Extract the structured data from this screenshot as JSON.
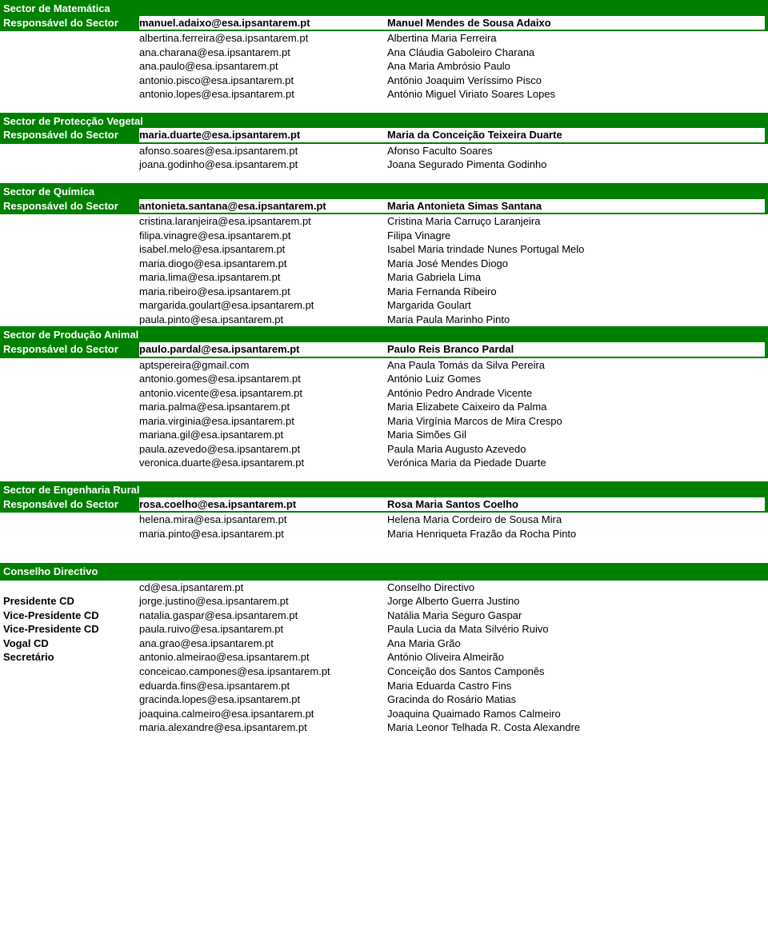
{
  "labels": {
    "responsavel": "Responsável do Sector"
  },
  "sectors": {
    "matematica": {
      "title": "Sector de Matemática",
      "items": [
        {
          "email": "manuel.adaixo@esa.ipsantarem.pt",
          "name": "Manuel Mendes de Sousa Adaixo"
        },
        {
          "email": "albertina.ferreira@esa.ipsantarem.pt",
          "name": "Albertina Maria Ferreira"
        },
        {
          "email": "ana.charana@esa.ipsantarem.pt",
          "name": "Ana Cláudia Gaboleiro Charana"
        },
        {
          "email": "ana.paulo@esa.ipsantarem.pt",
          "name": "Ana Maria Ambrósio Paulo"
        },
        {
          "email": "antonio.pisco@esa.ipsantarem.pt",
          "name": "António Joaquim Veríssimo Pisco"
        },
        {
          "email": "antonio.lopes@esa.ipsantarem.pt",
          "name": "António Miguel Viriato Soares Lopes"
        }
      ]
    },
    "proteccao": {
      "title": "Sector de Protecção Vegetal",
      "items": [
        {
          "email": "maria.duarte@esa.ipsantarem.pt",
          "name": "Maria da Conceição Teixeira Duarte"
        },
        {
          "email": "afonso.soares@esa.ipsantarem.pt",
          "name": "Afonso Faculto Soares"
        },
        {
          "email": "joana.godinho@esa.ipsantarem.pt",
          "name": "Joana Segurado Pimenta Godinho"
        }
      ]
    },
    "quimica": {
      "title": "Sector de Química",
      "items": [
        {
          "email": "antonieta.santana@esa.ipsantarem.pt",
          "name": "Maria Antonieta Simas Santana"
        },
        {
          "email": "cristina.laranjeira@esa.ipsantarem.pt",
          "name": "Cristina Maria Carruço Laranjeira"
        },
        {
          "email": "filipa.vinagre@esa.ipsantarem.pt",
          "name": "Filipa Vinagre"
        },
        {
          "email": "isabel.melo@esa.ipsantarem.pt",
          "name": "Isabel Maria trindade Nunes Portugal Melo"
        },
        {
          "email": "maria.diogo@esa.ipsantarem.pt",
          "name": "Maria José Mendes Diogo"
        },
        {
          "email": "maria.lima@esa.ipsantarem.pt",
          "name": "Maria Gabriela Lima"
        },
        {
          "email": "maria.ribeiro@esa.ipsantarem.pt",
          "name": "Maria Fernanda Ribeiro"
        },
        {
          "email": "margarida.goulart@esa.ipsantarem.pt",
          "name": "Margarida Goulart"
        },
        {
          "email": "paula.pinto@esa.ipsantarem.pt",
          "name": "Maria Paula Marinho Pinto"
        }
      ]
    },
    "producao": {
      "title": "Sector de Produção Animal",
      "items": [
        {
          "email": "paulo.pardal@esa.ipsantarem.pt",
          "name": "Paulo Reis Branco Pardal"
        },
        {
          "email": "aptspereira@gmail.com",
          "name": "Ana Paula Tomás da Silva Pereira"
        },
        {
          "email": "antonio.gomes@esa.ipsantarem.pt",
          "name": "António Luiz Gomes"
        },
        {
          "email": "antonio.vicente@esa.ipsantarem.pt",
          "name": "António Pedro Andrade Vicente"
        },
        {
          "email": "maria.palma@esa.ipsantarem.pt",
          "name": "Maria Elizabete Caixeiro da Palma"
        },
        {
          "email": "maria.virginia@esa.ipsantarem.pt",
          "name": "Maria Virgínia Marcos de Mira Crespo"
        },
        {
          "email": "mariana.gil@esa.ipsantarem.pt",
          "name": "Maria Simões Gil"
        },
        {
          "email": "paula.azevedo@esa.ipsantarem.pt",
          "name": "Paula Maria Augusto Azevedo"
        },
        {
          "email": "veronica.duarte@esa.ipsantarem.pt",
          "name": "Verónica Maria da Piedade Duarte"
        }
      ]
    },
    "engenharia": {
      "title": "Sector de Engenharia Rural",
      "items": [
        {
          "email": "rosa.coelho@esa.ipsantarem.pt",
          "name": "Rosa Maria Santos Coelho"
        },
        {
          "email": "helena.mira@esa.ipsantarem.pt",
          "name": "Helena Maria Cordeiro de Sousa Mira"
        },
        {
          "email": "maria.pinto@esa.ipsantarem.pt",
          "name": "Maria Henriqueta Frazão da Rocha Pinto"
        }
      ]
    }
  },
  "conselho": {
    "title": "Conselho Directivo",
    "items": [
      {
        "role": "",
        "email": "cd@esa.ipsantarem.pt",
        "name": "Conselho Directivo"
      },
      {
        "role": "Presidente CD",
        "email": "jorge.justino@esa.ipsantarem.pt",
        "name": "Jorge Alberto Guerra Justino"
      },
      {
        "role": "Vice-Presidente CD",
        "email": "natalia.gaspar@esa.ipsantarem.pt",
        "name": "Natália Maria Seguro Gaspar"
      },
      {
        "role": "Vice-Presidente CD",
        "email": "paula.ruivo@esa.ipsantarem.pt",
        "name": "Paula Lucia da Mata Silvério Ruivo"
      },
      {
        "role": "Vogal CD",
        "email": "ana.grao@esa.ipsantarem.pt",
        "name": "Ana Maria Grão"
      },
      {
        "role": "Secretário",
        "email": "antonio.almeirao@esa.ipsantarem.pt",
        "name": "António Oliveira Almeirão"
      },
      {
        "role": "",
        "email": "conceicao.campones@esa.ipsantarem.pt",
        "name": "Conceição dos Santos Camponês"
      },
      {
        "role": "",
        "email": "eduarda.fins@esa.ipsantarem.pt",
        "name": "Maria Eduarda Castro Fins"
      },
      {
        "role": "",
        "email": "gracinda.lopes@esa.ipsantarem.pt",
        "name": "Gracinda do Rosário Matias"
      },
      {
        "role": "",
        "email": "joaquina.calmeiro@esa.ipsantarem.pt",
        "name": "Joaquina Quaimado Ramos Calmeiro"
      },
      {
        "role": "",
        "email": "maria.alexandre@esa.ipsantarem.pt",
        "name": "Maria Leonor Telhada R. Costa Alexandre"
      }
    ]
  }
}
